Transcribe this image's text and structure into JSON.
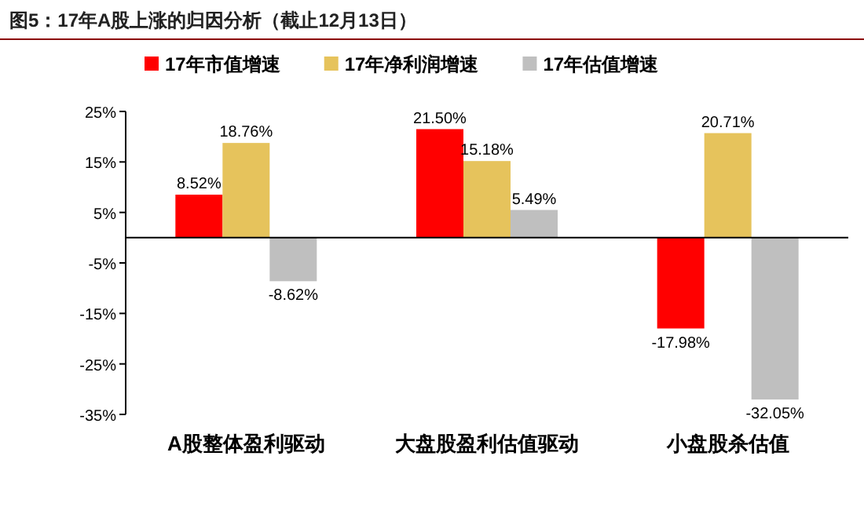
{
  "chart_data": {
    "type": "bar",
    "title": "图5：17年A股上涨的归因分析（截止12月13日）",
    "categories": [
      "A股整体盈利驱动",
      "大盘股盈利估值驱动",
      "小盘股杀估值"
    ],
    "series": [
      {
        "name": "17年市值增速",
        "color": "#ff0000",
        "values": [
          8.52,
          21.5,
          -17.98
        ],
        "value_labels": [
          "8.52%",
          "21.50%",
          "-17.98%"
        ]
      },
      {
        "name": "17年净利润增速",
        "color": "#e6c35c",
        "values": [
          18.76,
          15.18,
          20.71
        ],
        "value_labels": [
          "18.76%",
          "15.18%",
          "20.71%"
        ]
      },
      {
        "name": "17年估值增速",
        "color": "#bfbfbf",
        "values": [
          -8.62,
          5.49,
          -32.05
        ],
        "value_labels": [
          "-8.62%",
          "5.49%",
          "-32.05%"
        ]
      }
    ],
    "ylim": [
      -35,
      25
    ],
    "yticks": [
      {
        "value": 25,
        "label": "25%"
      },
      {
        "value": 15,
        "label": "15%"
      },
      {
        "value": 5,
        "label": "5%"
      },
      {
        "value": -5,
        "label": "-5%"
      },
      {
        "value": -15,
        "label": "-15%"
      },
      {
        "value": -25,
        "label": "-25%"
      },
      {
        "value": -35,
        "label": "-35%"
      }
    ],
    "grid": false,
    "legend": "top"
  }
}
